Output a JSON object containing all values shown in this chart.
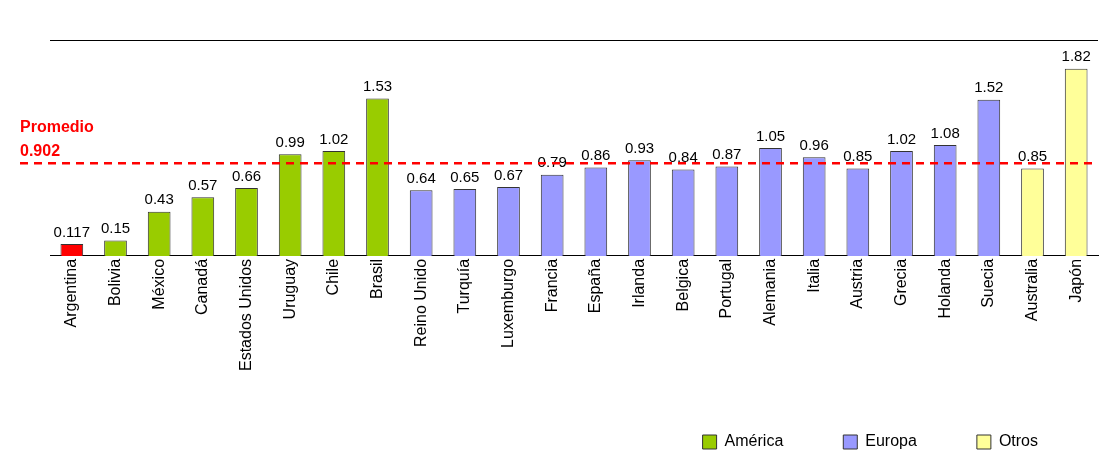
{
  "chart_data": {
    "type": "bar",
    "stacked": true,
    "categories": [
      "Argentina",
      "Bolivia",
      "México",
      "Canadá",
      "Estados Unidos",
      "Uruguay",
      "Chile",
      "Brasil",
      "Reino Unido",
      "Turquía",
      "Luxemburgo",
      "Francia",
      "España",
      "Irlanda",
      "Belgica",
      "Portugal",
      "Alemania",
      "Italia",
      "Austria",
      "Grecia",
      "Holanda",
      "Suecia",
      "Australia",
      "Japón"
    ],
    "series": [
      {
        "color": "#ff0000",
        "values": [
          0.117,
          null,
          null,
          null,
          null,
          null,
          null,
          null,
          null,
          null,
          null,
          null,
          null,
          null,
          null,
          null,
          null,
          null,
          null,
          null,
          null,
          null,
          null,
          null
        ]
      },
      {
        "name": "América",
        "color": "#99cc00",
        "values": [
          null,
          0.15,
          0.43,
          0.57,
          0.66,
          0.99,
          1.02,
          1.53,
          null,
          null,
          null,
          null,
          null,
          null,
          null,
          null,
          null,
          null,
          null,
          null,
          null,
          null,
          null,
          null
        ]
      },
      {
        "name": "Europa",
        "color": "#9999ff",
        "values": [
          null,
          null,
          null,
          null,
          null,
          null,
          null,
          null,
          0.64,
          0.65,
          0.67,
          0.79,
          0.86,
          0.93,
          0.84,
          0.87,
          1.05,
          0.96,
          0.85,
          1.02,
          1.08,
          1.52,
          null,
          null
        ]
      },
      {
        "name": "Otros",
        "color": "#ffff99",
        "values": [
          null,
          null,
          null,
          null,
          null,
          null,
          null,
          null,
          null,
          null,
          null,
          null,
          null,
          null,
          null,
          null,
          null,
          null,
          null,
          null,
          null,
          null,
          0.85,
          1.82
        ]
      }
    ],
    "ylim": [
      0,
      2.1
    ],
    "tick_labels": "x",
    "data_labels": true,
    "legend": "bottom right",
    "ref_lines": [
      {
        "axis": "y",
        "value": 0.902,
        "label": "Promedio 0.902",
        "color": "#ff0000",
        "line_style": "dashed"
      }
    ]
  }
}
